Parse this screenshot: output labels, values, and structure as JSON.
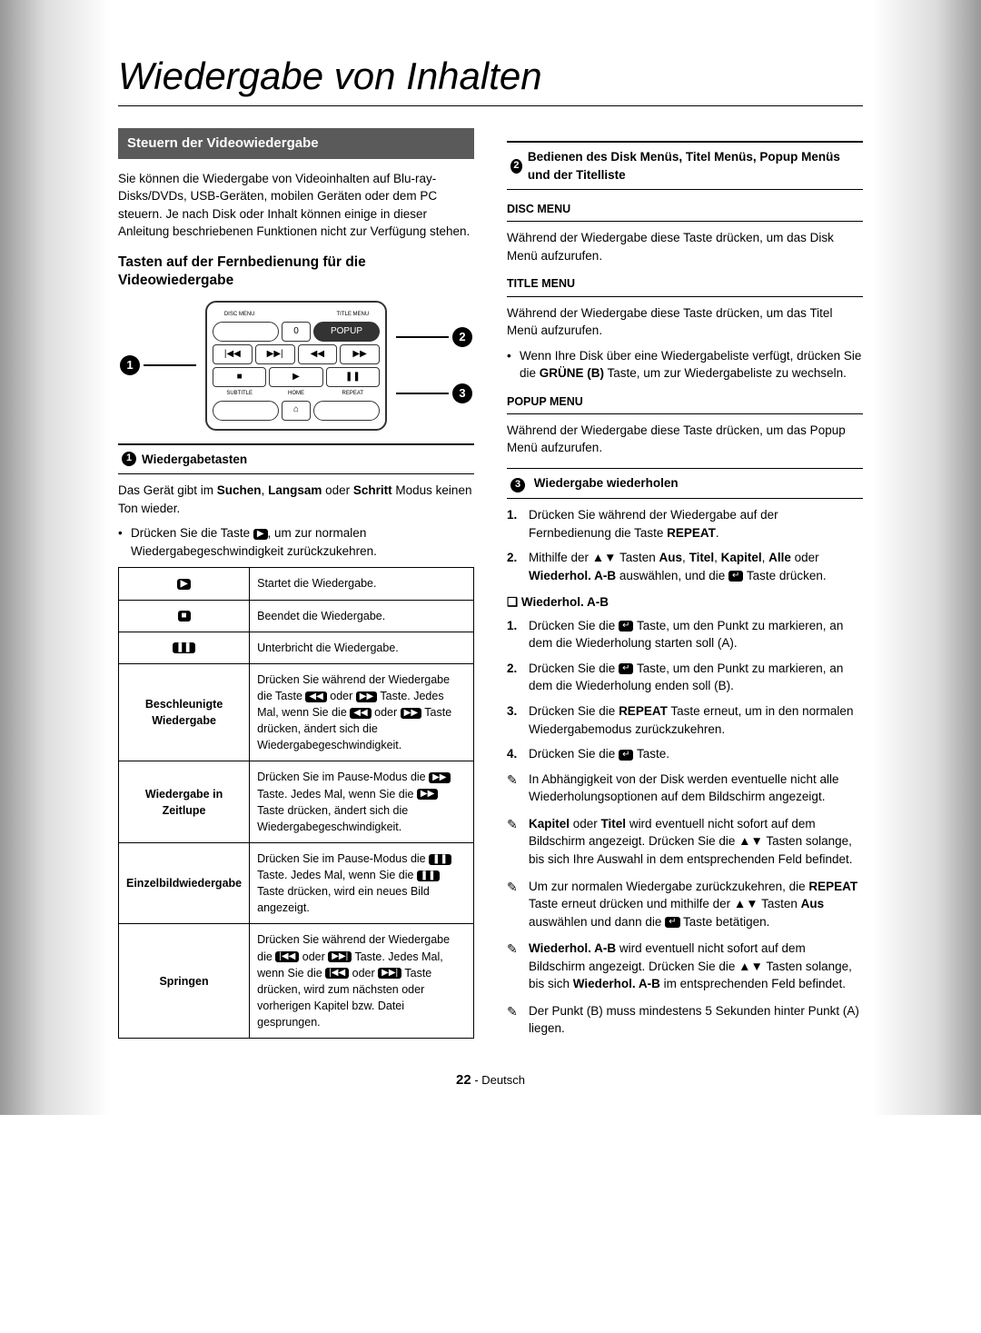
{
  "page": {
    "title": "Wiedergabe von Inhalten",
    "number": "22",
    "lang_suffix": " - Deutsch"
  },
  "left": {
    "section_header": "Steuern der Videowiedergabe",
    "intro": "Sie können die Wiedergabe von Videoinhalten auf Blu-ray-Disks/DVDs, USB-Geräten, mobilen Geräten oder dem PC steuern. Je nach Disk oder Inhalt können einige in dieser Anleitung beschriebenen Funktionen nicht zur Verfügung stehen.",
    "subhead": "Tasten auf der Fernbedienung für die Videowiedergabe",
    "remote": {
      "labels": {
        "disc_menu": "DISC MENU",
        "title_menu": "TITLE MENU",
        "popup": "POPUP",
        "subtitle": "SUBTITLE",
        "home": "HOME",
        "repeat": "REPEAT",
        "zero": "0"
      }
    },
    "callouts": {
      "c1": "1",
      "c2": "2",
      "c3": "3"
    },
    "bar1": {
      "num": "1",
      "label": "Wiedergabetasten"
    },
    "para1_html": "Das Gerät gibt im <b>Suchen</b>, <b>Langsam</b> oder <b>Schritt</b> Modus keinen Ton wieder.",
    "bullet1_html": "Drücken Sie die Taste <span class='icon-key'>▶</span>, um zur normalen Wiedergabegeschwindigkeit zurückzukehren.",
    "table": [
      {
        "icon_html": "<span class='icon-key'>▶</span>",
        "desc": "Startet die Wiedergabe."
      },
      {
        "icon_html": "<span class='icon-key'>■</span>",
        "desc": "Beendet die Wiedergabe."
      },
      {
        "icon_html": "<span class='icon-key'>❚❚</span>",
        "desc": "Unterbricht die Wiedergabe."
      },
      {
        "label": "Beschleunigte Wiedergabe",
        "desc_html": "Drücken Sie während der Wiedergabe die Taste <span class='icon-key'>◀◀</span> oder <span class='icon-key'>▶▶</span> Taste. Jedes Mal, wenn Sie die <span class='icon-key'>◀◀</span> oder <span class='icon-key'>▶▶</span> Taste drücken, ändert sich die Wiedergabegeschwindigkeit."
      },
      {
        "label": "Wiedergabe in Zeitlupe",
        "desc_html": "Drücken Sie im Pause-Modus die <span class='icon-key'>▶▶</span> Taste. Jedes Mal, wenn Sie die <span class='icon-key'>▶▶</span> Taste drücken, ändert sich die Wiedergabegeschwindigkeit."
      },
      {
        "label": "Einzelbildwiedergabe",
        "desc_html": "Drücken Sie im Pause-Modus die <span class='icon-key'>❚❚</span> Taste. Jedes Mal, wenn Sie die <span class='icon-key'>❚❚</span> Taste drücken, wird ein neues Bild angezeigt."
      },
      {
        "label": "Springen",
        "desc_html": "Drücken Sie während der Wiedergabe die <span class='icon-key'>|◀◀</span> oder <span class='icon-key'>▶▶|</span> Taste. Jedes Mal, wenn Sie die <span class='icon-key'>|◀◀</span> oder <span class='icon-key'>▶▶|</span> Taste drücken, wird zum nächsten oder vorherigen Kapitel bzw. Datei gesprungen."
      }
    ]
  },
  "right": {
    "bar2": {
      "num": "2",
      "label": "Bedienen des Disk Menüs, Titel Menüs, Popup Menüs und der Titelliste"
    },
    "disc_menu": {
      "head": "DISC MENU",
      "text": "Während der Wiedergabe diese Taste drücken, um das Disk Menü aufzurufen."
    },
    "title_menu": {
      "head": "TITLE MENU",
      "text": "Während der Wiedergabe diese Taste drücken, um das Titel Menü aufzurufen.",
      "bullet_html": "Wenn Ihre Disk über eine Wiedergabeliste verfügt, drücken Sie die <b>GRÜNE (B)</b> Taste, um zur Wiedergabeliste zu wechseln."
    },
    "popup_menu": {
      "head": "POPUP MENU",
      "text": "Während der Wiedergabe diese Taste drücken, um das Popup Menü aufzurufen."
    },
    "bar3": {
      "num": "3",
      "label": "Wiedergabe wiederholen"
    },
    "list1": [
      {
        "n": "1.",
        "html": "Drücken Sie während der Wiedergabe auf der Fernbedienung die Taste <b>REPEAT</b>."
      },
      {
        "n": "2.",
        "html": "Mithilfe der ▲▼ Tasten <b>Aus</b>, <b>Titel</b>, <b>Kapitel</b>, <b>Alle</b> oder <b>Wiederhol. A-B</b> auswählen, und die <span class='icon-key'>↵</span> Taste drücken."
      }
    ],
    "ab_head": "Wiederhol. A-B",
    "list2": [
      {
        "n": "1.",
        "html": "Drücken Sie die <span class='icon-key'>↵</span> Taste, um den Punkt zu markieren, an dem die Wiederholung starten soll (A)."
      },
      {
        "n": "2.",
        "html": "Drücken Sie die <span class='icon-key'>↵</span> Taste, um den Punkt zu markieren, an dem die Wiederholung enden soll (B)."
      },
      {
        "n": "3.",
        "html": "Drücken Sie die <b>REPEAT</b> Taste erneut, um in den normalen Wiedergabemodus zurückzukehren."
      },
      {
        "n": "4.",
        "html": "Drücken Sie die <span class='icon-key'>↵</span> Taste."
      }
    ],
    "notes": [
      "In Abhängigkeit von der Disk werden eventuelle nicht alle Wiederholungsoptionen auf dem Bildschirm angezeigt.",
      "<b>Kapitel</b> oder <b>Titel</b> wird eventuell nicht sofort auf dem Bildschirm angezeigt. Drücken Sie die ▲▼ Tasten solange, bis sich Ihre Auswahl in dem entsprechenden Feld befindet.",
      "Um zur normalen Wiedergabe zurückzukehren, die <b>REPEAT</b> Taste erneut drücken und mithilfe der ▲▼ Tasten <b>Aus</b> auswählen und dann die <span class='icon-key'>↵</span> Taste betätigen.",
      "<b>Wiederhol. A-B</b> wird eventuell nicht sofort auf dem Bildschirm angezeigt. Drücken Sie die ▲▼ Tasten solange, bis sich <b>Wiederhol. A-B</b> im entsprechenden Feld befindet.",
      "Der Punkt (B) muss mindestens 5 Sekunden hinter Punkt (A) liegen."
    ]
  }
}
